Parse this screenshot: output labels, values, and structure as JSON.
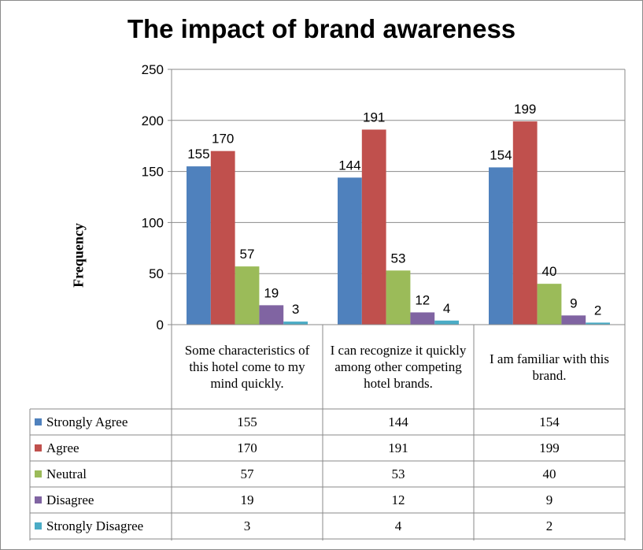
{
  "chart_data": {
    "type": "bar",
    "title": "The impact of brand awareness",
    "ylabel": "Frequency",
    "xlabel": "",
    "ylim": [
      0,
      250
    ],
    "yticks": [
      "0",
      "50",
      "100",
      "150",
      "200",
      "250"
    ],
    "grid": true,
    "legend_placement": "data table (left)",
    "categories": [
      "Some characteristics of this hotel come to my mind quickly.",
      "I can recognize it quickly among other competing hotel brands.",
      "I am familiar with this brand."
    ],
    "series": [
      {
        "name": "Strongly Agree",
        "color": "#4F81BD",
        "values": [
          155,
          144,
          154
        ]
      },
      {
        "name": "Agree",
        "color": "#C0504D",
        "values": [
          170,
          191,
          199
        ]
      },
      {
        "name": "Neutral",
        "color": "#9BBB59",
        "values": [
          57,
          53,
          40
        ]
      },
      {
        "name": "Disagree",
        "color": "#8064A2",
        "values": [
          19,
          12,
          9
        ]
      },
      {
        "name": "Strongly Disagree",
        "color": "#4BACC6",
        "values": [
          3,
          4,
          2
        ]
      }
    ]
  }
}
